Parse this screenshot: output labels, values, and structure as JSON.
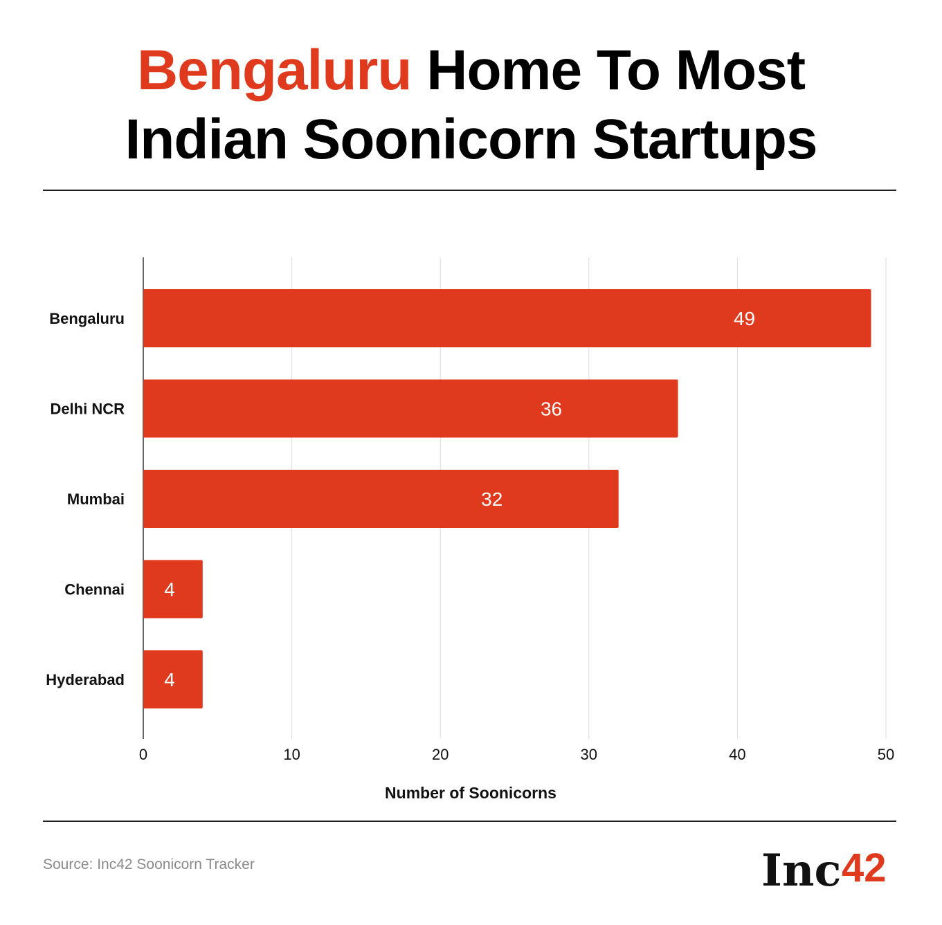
{
  "header": {
    "title_accent": "Bengaluru",
    "title_rest_line1": "Home To Most",
    "title_line2": "Indian Soonicorn Startups"
  },
  "footer": {
    "source": "Source: Inc42 Soonicorn Tracker",
    "logo_text": "Inc",
    "logo_mark": "42"
  },
  "colors": {
    "accent": "#e03a1e",
    "bar": "#e03a1e",
    "grid": "#dcdcdc",
    "axis": "#333333"
  },
  "chart_data": {
    "type": "bar",
    "orientation": "horizontal",
    "categories": [
      "Bengaluru",
      "Delhi NCR",
      "Mumbai",
      "Chennai",
      "Hyderabad"
    ],
    "values": [
      49,
      36,
      32,
      4,
      4
    ],
    "xlabel": "Number of Soonicorns",
    "xlim": [
      0,
      50
    ],
    "xticks": [
      0,
      10,
      20,
      30,
      40,
      50
    ],
    "grid": true,
    "legend": "none"
  }
}
